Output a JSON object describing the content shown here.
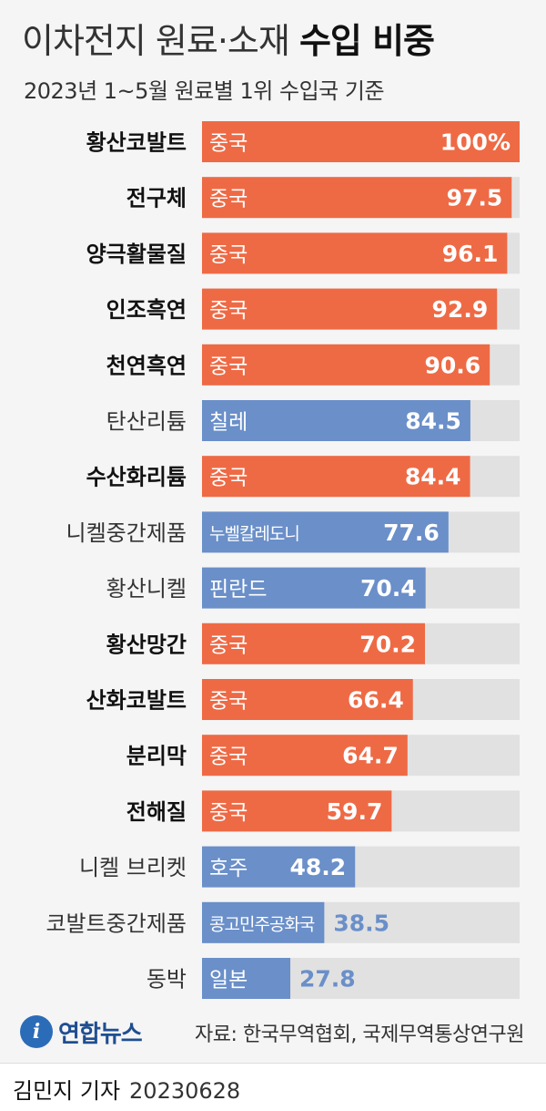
{
  "header": {
    "title_light": "이차전지 원료·소재",
    "title_bold": "수입 비중",
    "subtitle": "2023년 1~5월 원료별 1위 수입국 기준"
  },
  "colors": {
    "china": "#ee6a45",
    "other": "#6a8fc9",
    "track": "#e1e1e1",
    "label_bold": "#111111",
    "label_light": "#333333",
    "outside_value": "#6a8fc9"
  },
  "chart_data": {
    "type": "bar",
    "orientation": "horizontal",
    "unit": "%",
    "xlim": [
      0,
      100
    ],
    "categories": [
      "황산코발트",
      "전구체",
      "양극활물질",
      "인조흑연",
      "천연흑연",
      "탄산리튬",
      "수산화리튬",
      "니켈중간제품",
      "황산니켈",
      "황산망간",
      "산화코발트",
      "분리막",
      "전해질",
      "니켈 브리켓",
      "코발트중간제품",
      "동박"
    ],
    "values": [
      100,
      97.5,
      96.1,
      92.9,
      90.6,
      84.5,
      84.4,
      77.6,
      70.4,
      70.2,
      66.4,
      64.7,
      59.7,
      48.2,
      38.5,
      27.8
    ],
    "value_labels": [
      "100%",
      "97.5",
      "96.1",
      "92.9",
      "90.6",
      "84.5",
      "84.4",
      "77.6",
      "70.4",
      "70.2",
      "66.4",
      "64.7",
      "59.7",
      "48.2",
      "38.5",
      "27.8"
    ],
    "countries": [
      "중국",
      "중국",
      "중국",
      "중국",
      "중국",
      "칠레",
      "중국",
      "누벨칼레도니",
      "핀란드",
      "중국",
      "중국",
      "중국",
      "중국",
      "호주",
      "콩고민주공화국",
      "일본"
    ],
    "is_china": [
      true,
      true,
      true,
      true,
      true,
      false,
      true,
      false,
      false,
      true,
      true,
      true,
      true,
      false,
      false,
      false
    ]
  },
  "footer": {
    "logo_mark": "i",
    "logo_text": "연합뉴스",
    "source": "자료: 한국무역협회, 국제무역통상연구원",
    "author": "김민지 기자",
    "date": "20230628"
  }
}
